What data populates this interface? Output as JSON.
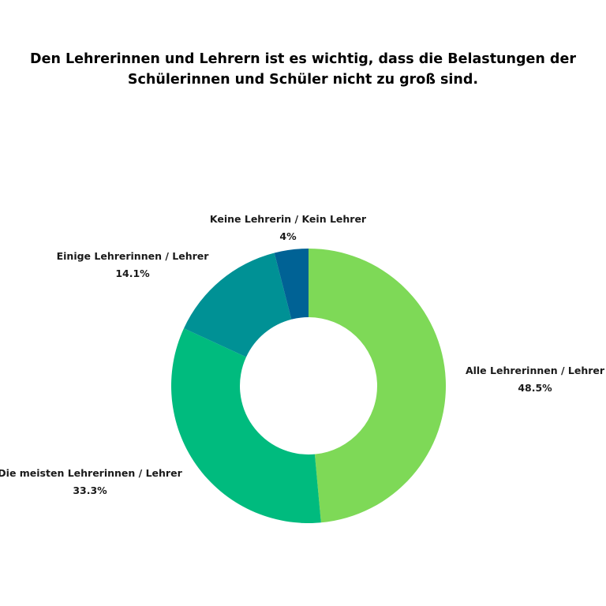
{
  "chart_data": {
    "type": "pie",
    "variant": "donut",
    "title": "Den Lehrerinnen und Lehrern ist es wichtig, dass die Belastungen der Schülerinnen und Schüler nicht zu groß sind.",
    "slices": [
      {
        "label": "Alle Lehrerinnen / Lehrer",
        "value": 48.5,
        "value_label": "48.5%",
        "color": "#7ed957"
      },
      {
        "label": "Die meisten Lehrerinnen / Lehrer",
        "value": 33.3,
        "value_label": "33.3%",
        "color": "#00bb7e"
      },
      {
        "label": "Einige Lehrerinnen / Lehrer",
        "value": 14.1,
        "value_label": "14.1%",
        "color": "#009195"
      },
      {
        "label": "Keine Lehrerin / Kein Lehrer",
        "value": 4,
        "value_label": "4%",
        "color": "#006295"
      }
    ],
    "start": "top",
    "direction": "clockwise",
    "legend": "none"
  }
}
